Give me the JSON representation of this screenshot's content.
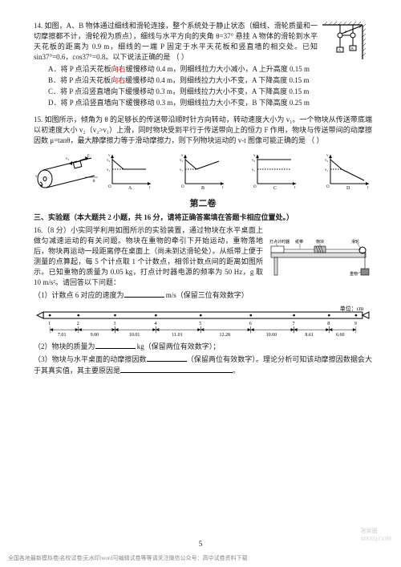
{
  "q14": {
    "stem": "14. 如图，A、B 物体通过细线和滑轮连接，整个系统处于静止状态（细线、滑轮质量和一切摩擦都不计，滑轮视为质点），细线与水平方向的夹角 θ=37° 悬挂 A 物体的滑轮到水平天花板的距离为 0.9 m，细线的一端 P 固定于水平天花板和竖直墙的相交处。已知 sin37°=0.6，cos37°=0.8。以下说法正确的是      （        ）",
    "opts": {
      "A": {
        "p1": "A．将 P 点沿天花板",
        "move": "向右",
        "p2": "缓慢移动 0.4 m，则细线拉力大小减小，A 上升高度 0.15 m"
      },
      "B": {
        "p1": "B．将 P 点沿天花板",
        "move": "向右",
        "p2": "缓慢移动 0.4 m，则细线拉力大小不变，A 下降高度 0.15 m"
      },
      "C": {
        "p1": "C．将 P 点沿竖直墙向下缓慢移动 0.3 m，则细线拉力大小不变，A 下降高度 0.15 m"
      },
      "D": {
        "p1": "D．将 P 点沿竖直墙向下缓慢移动 0.3 m，则细线拉力大小不变，B 下降高度 0.25 m"
      }
    },
    "fig": {
      "labels": {
        "P": "P",
        "A": "A",
        "B": "B",
        "theta": "θ"
      }
    }
  },
  "q15": {
    "stem": "15. 如图所示，倾角为 θ 的足够长的传送带沿顺时针方向转动，转动速度大小为 v₁。一个物块从传送带底端以初速度大小 v₂（v₂>v₁）上滑，同时物块受到平行于传送带向上的恒力 F 作用，物块与传送带间的动摩擦因数 μ=tanθ，最大静摩擦力等于滑动摩擦力，则下列物块运动的 v-t 图像可能正确的是              （        ）",
    "fig": {
      "labels": {
        "v2": "v₂",
        "v1": "v₁",
        "F": "F",
        "theta": "θ"
      }
    },
    "choices": [
      "A",
      "B",
      "C",
      "D"
    ],
    "axis": {
      "y1": "v₂",
      "y2": "v₁",
      "x": "t",
      "y": "v",
      "o": "O"
    }
  },
  "part2": "第二卷",
  "sec3": "三、实验题（本大题共 2 小题，共 16 分，请将正确答案填在答题卡相应位置处。）",
  "q16": {
    "stem": "16.（8 分）小实同学利用如图所示的实验装置，通过物块在水平桌面上做匀减速运动的有关问题。物块在重物的牵引下开始运动，重物落地后，物块再运动一段距离停在桌面上（尚未到达滑轮处）。从纸带上便于测量的点算起，每 5 个计点取 1 个计数点，相邻计数点间的距离如图所示。已知重物的质量为 0.05 kg，打点计时器电源的频率为 50 Hz，g 取 10 m/s²。请回答以下问题：",
    "fig": {
      "labels": {
        "timer": "打点计时器",
        "tape": "纸带",
        "wk": "物块",
        "pulley": "滑轮",
        "wt": "重物"
      }
    },
    "sub1": {
      "pre": "（1）计数点 6 对应的速度为",
      "unit": " m/s（保留三位有效数字）"
    },
    "ruler": {
      "unit_label": "单位：cm",
      "marks": [
        "1",
        "2",
        "3",
        "4",
        "5",
        "6",
        "7",
        "8",
        "9"
      ],
      "dist": [
        "7.01",
        "9.00",
        "10.01",
        "11.01",
        "12.28",
        "10.60",
        "8.61",
        "6.60"
      ]
    },
    "sub2": {
      "pre": "（2）物块的质量为",
      "unit": " kg（保留两位有效数字）；"
    },
    "sub3": {
      "pre": "（3）物块与水平桌面的动摩擦因数",
      "mid": "（保留两位有效数字）。理论分析可知该动摩擦因数据会大于其真实值，其主要原因是",
      "end": "。"
    }
  },
  "pageNumber": "5",
  "footer": {
    "left": "全国各地最新模拟卷|名校试卷|无水印|word可编辑试卷等等请关注微信公众号：高中试卷资料下载",
    "rightTop": "答案圈",
    "rightBottom": "MXEQ.COM"
  }
}
